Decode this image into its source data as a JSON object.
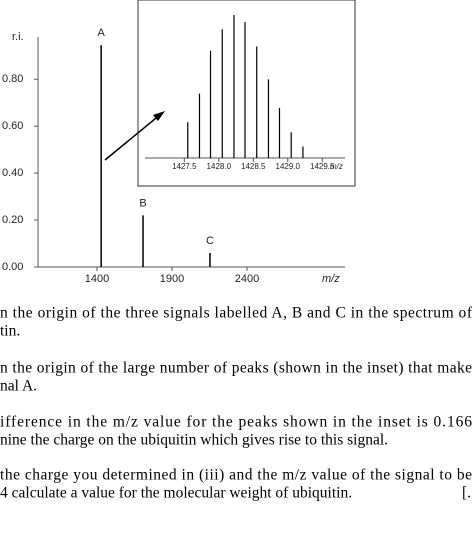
{
  "chart_data": [
    {
      "type": "stem",
      "y_label": "r.i.",
      "x_label": "m/z",
      "x": [
        1428,
        1707,
        2153
      ],
      "values": [
        0.945,
        0.22,
        0.06
      ],
      "peak_labels": [
        "A",
        "B",
        "C"
      ],
      "color": "#000000",
      "xlim": [
        1007,
        3053
      ],
      "ylim": [
        0,
        0.98
      ],
      "xticks": [
        1400,
        1900,
        2400
      ],
      "yticks": [
        {
          "value": 0,
          "label": "0.00"
        },
        {
          "value": 0.2,
          "label": "0.20"
        },
        {
          "value": 0.4,
          "label": "0.40"
        },
        {
          "value": 0.6,
          "label": "0.60"
        },
        {
          "value": 0.8,
          "label": "0.80"
        }
      ]
    },
    {
      "type": "stem",
      "x_label": "m/z",
      "x": [
        1427.55,
        1427.72,
        1427.88,
        1428.05,
        1428.22,
        1428.38,
        1428.55,
        1428.72,
        1428.88,
        1429.05,
        1429.22
      ],
      "values": [
        0.25,
        0.45,
        0.75,
        0.9,
        1.0,
        0.95,
        0.78,
        0.55,
        0.35,
        0.18,
        0.08
      ],
      "color": "#000000",
      "xlim": [
        1426.93,
        1429.83
      ],
      "ylim": [
        0,
        1.0
      ],
      "xticks": [
        {
          "value": 1427.5,
          "label": "1427.5"
        },
        {
          "value": 1428.0,
          "label": "1428.0"
        },
        {
          "value": 1428.5,
          "label": "1428.5"
        },
        {
          "value": 1429.0,
          "label": "1429.0"
        },
        {
          "value": 1429.5,
          "label": "1429.5"
        }
      ]
    }
  ],
  "questions": [
    [
      "n the origin of the three signals labelled A, B and C in the spectrum of",
      "tin."
    ],
    [
      "n the origin of the large number of peaks (shown in the inset) that make",
      "nal A."
    ],
    [
      "ifference in the m/z value for the peaks shown in the inset is 0.166",
      "nine the charge on the ubiquitin which gives rise to this signal."
    ],
    [
      "the charge you determined in (iii) and the m/z value of the signal to be",
      "4 calculate a value for the molecular weight of ubiquitin."
    ]
  ],
  "margin_mark": "[."
}
